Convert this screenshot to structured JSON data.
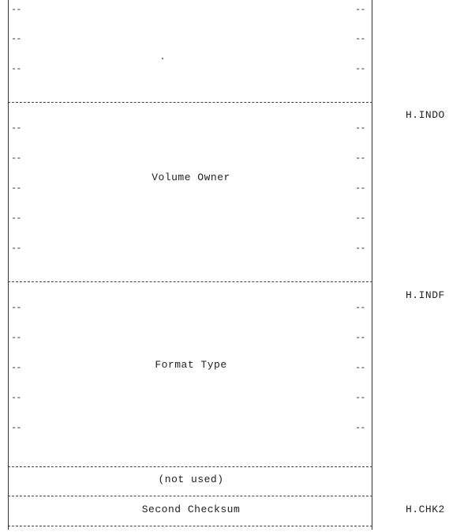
{
  "fields": {
    "volume_owner": "Volume Owner",
    "format_type": "Format Type",
    "not_used": "(not used)",
    "second_checksum": "Second Checksum"
  },
  "offsets": {
    "h_indo": "H.INDO",
    "h_indf": "H.INDF",
    "h_chk2": "H.CHK2"
  },
  "tick_glyph": "--"
}
